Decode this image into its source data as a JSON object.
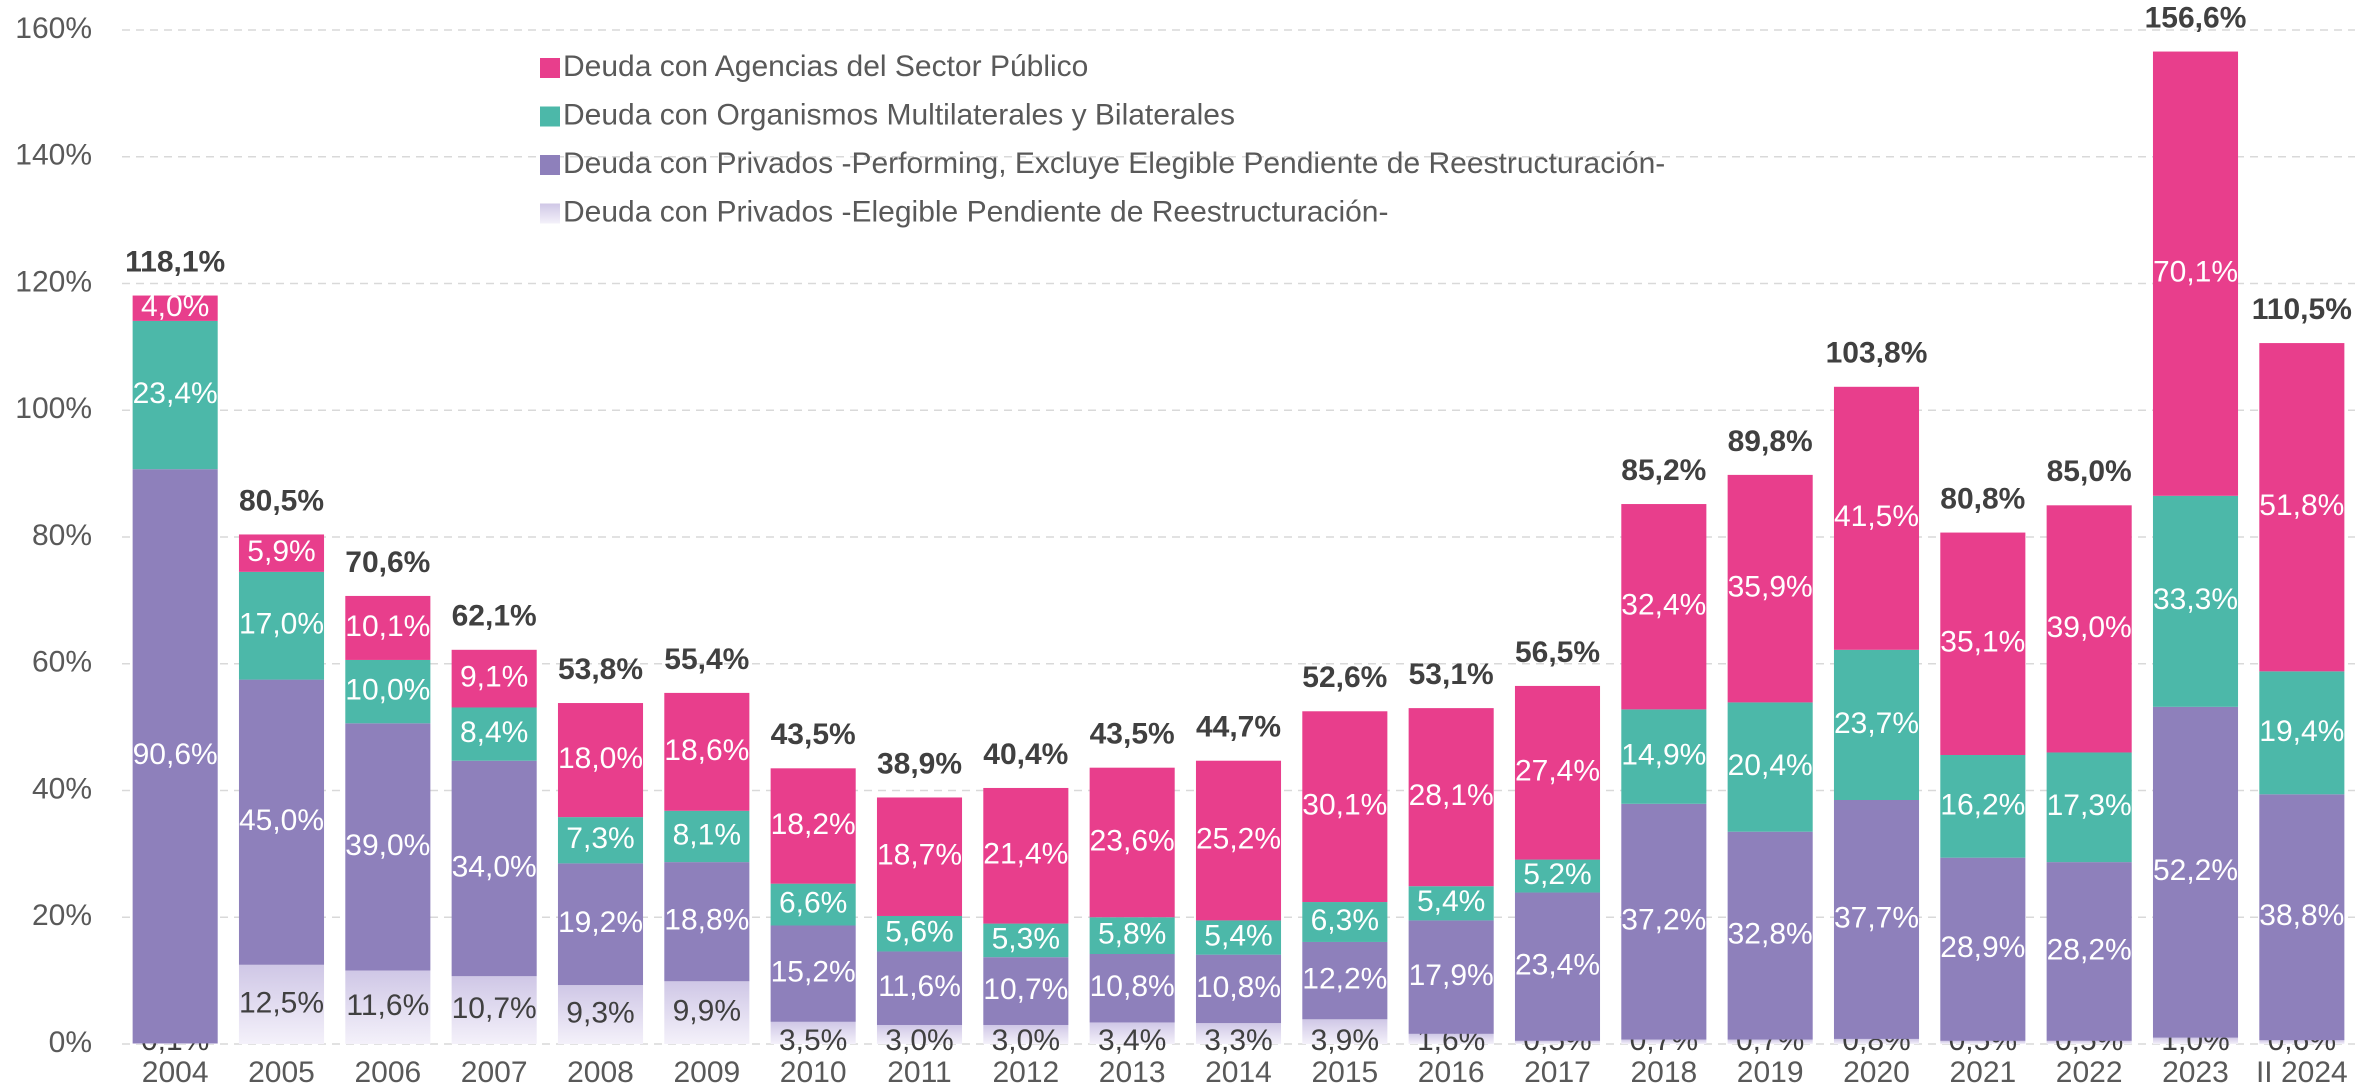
{
  "chart_data": {
    "type": "stacked_bar",
    "categories": [
      "2004",
      "2005",
      "2006",
      "2007",
      "2008",
      "2009",
      "2010",
      "2011",
      "2012",
      "2013",
      "2014",
      "2015",
      "2016",
      "2017",
      "2018",
      "2019",
      "2020",
      "2021",
      "2022",
      "2023",
      "II 2024"
    ],
    "series": [
      {
        "name": "Deuda con Privados -Elegible Pendiente de Reestructuración-",
        "color": "#dcd6ec",
        "values": [
          0.1,
          12.5,
          11.6,
          10.7,
          9.3,
          9.9,
          3.5,
          3.0,
          3.0,
          3.4,
          3.3,
          3.9,
          1.6,
          0.5,
          0.7,
          0.7,
          0.8,
          0.5,
          0.5,
          1.0,
          0.6
        ],
        "value_labels": [
          "0,1%",
          "12,5%",
          "11,6%",
          "10,7%",
          "9,3%",
          "9,9%",
          "3,5%",
          "3,0%",
          "3,0%",
          "3,4%",
          "3,3%",
          "3,9%",
          "1,6%",
          "0,5%",
          "0,7%",
          "0,7%",
          "0,8%",
          "0,5%",
          "0,5%",
          "1,0%",
          "0,6%"
        ]
      },
      {
        "name": "Deuda con Privados -Performing, Excluye Elegible Pendiente de Reestructuración-",
        "color": "#8e80bb",
        "values": [
          90.6,
          45.0,
          39.0,
          34.0,
          19.2,
          18.8,
          15.2,
          11.6,
          10.7,
          10.8,
          10.8,
          12.2,
          17.9,
          23.4,
          37.2,
          32.8,
          37.7,
          28.9,
          28.2,
          52.2,
          38.8
        ],
        "value_labels": [
          "90,6%",
          "45,0%",
          "39,0%",
          "34,0%",
          "19,2%",
          "18,8%",
          "15,2%",
          "11,6%",
          "10,7%",
          "10,8%",
          "10,8%",
          "12,2%",
          "17,9%",
          "23,4%",
          "37,2%",
          "32,8%",
          "37,7%",
          "28,9%",
          "28,2%",
          "52,2%",
          "38,8%"
        ]
      },
      {
        "name": "Deuda con Organismos Multilaterales y Bilaterales",
        "color": "#4cb8a9",
        "values": [
          23.4,
          17.0,
          10.0,
          8.4,
          7.3,
          8.1,
          6.6,
          5.6,
          5.3,
          5.8,
          5.4,
          6.3,
          5.4,
          5.2,
          14.9,
          20.4,
          23.7,
          16.2,
          17.3,
          33.3,
          19.4
        ],
        "value_labels": [
          "23,4%",
          "17,0%",
          "10,0%",
          "8,4%",
          "7,3%",
          "8,1%",
          "6,6%",
          "5,6%",
          "5,3%",
          "5,8%",
          "5,4%",
          "6,3%",
          "5,4%",
          "5,2%",
          "14,9%",
          "20,4%",
          "23,7%",
          "16,2%",
          "17,3%",
          "33,3%",
          "19,4%"
        ]
      },
      {
        "name": "Deuda con Agencias del Sector Público",
        "color": "#e83e8c",
        "values": [
          4.0,
          5.9,
          10.1,
          9.1,
          18.0,
          18.6,
          18.2,
          18.7,
          21.4,
          23.6,
          25.2,
          30.1,
          28.1,
          27.4,
          32.4,
          35.9,
          41.5,
          35.1,
          39.0,
          70.1,
          51.8
        ],
        "value_labels": [
          "4,0%",
          "5,9%",
          "10,1%",
          "9,1%",
          "18,0%",
          "18,6%",
          "18,2%",
          "18,7%",
          "21,4%",
          "23,6%",
          "25,2%",
          "30,1%",
          "28,1%",
          "27,4%",
          "32,4%",
          "35,9%",
          "41,5%",
          "35,1%",
          "39,0%",
          "70,1%",
          "51,8%"
        ]
      }
    ],
    "total_labels": [
      "118,1%",
      "80,5%",
      "70,6%",
      "62,1%",
      "53,8%",
      "55,4%",
      "43,5%",
      "38,9%",
      "40,4%",
      "43,5%",
      "44,7%",
      "52,6%",
      "53,1%",
      "56,5%",
      "85,2%",
      "89,8%",
      "103,8%",
      "80,8%",
      "85,0%",
      "156,6%",
      "110,5%"
    ],
    "ylim": [
      0,
      160
    ],
    "yticks": [
      {
        "value": 0,
        "label": "0%"
      },
      {
        "value": 20,
        "label": "20%"
      },
      {
        "value": 40,
        "label": "40%"
      },
      {
        "value": 60,
        "label": "60%"
      },
      {
        "value": 80,
        "label": "80%"
      },
      {
        "value": 100,
        "label": "100%"
      },
      {
        "value": 120,
        "label": "120%"
      },
      {
        "value": 140,
        "label": "140%"
      },
      {
        "value": 160,
        "label": "160%"
      }
    ],
    "grid": true,
    "legend": "top"
  }
}
